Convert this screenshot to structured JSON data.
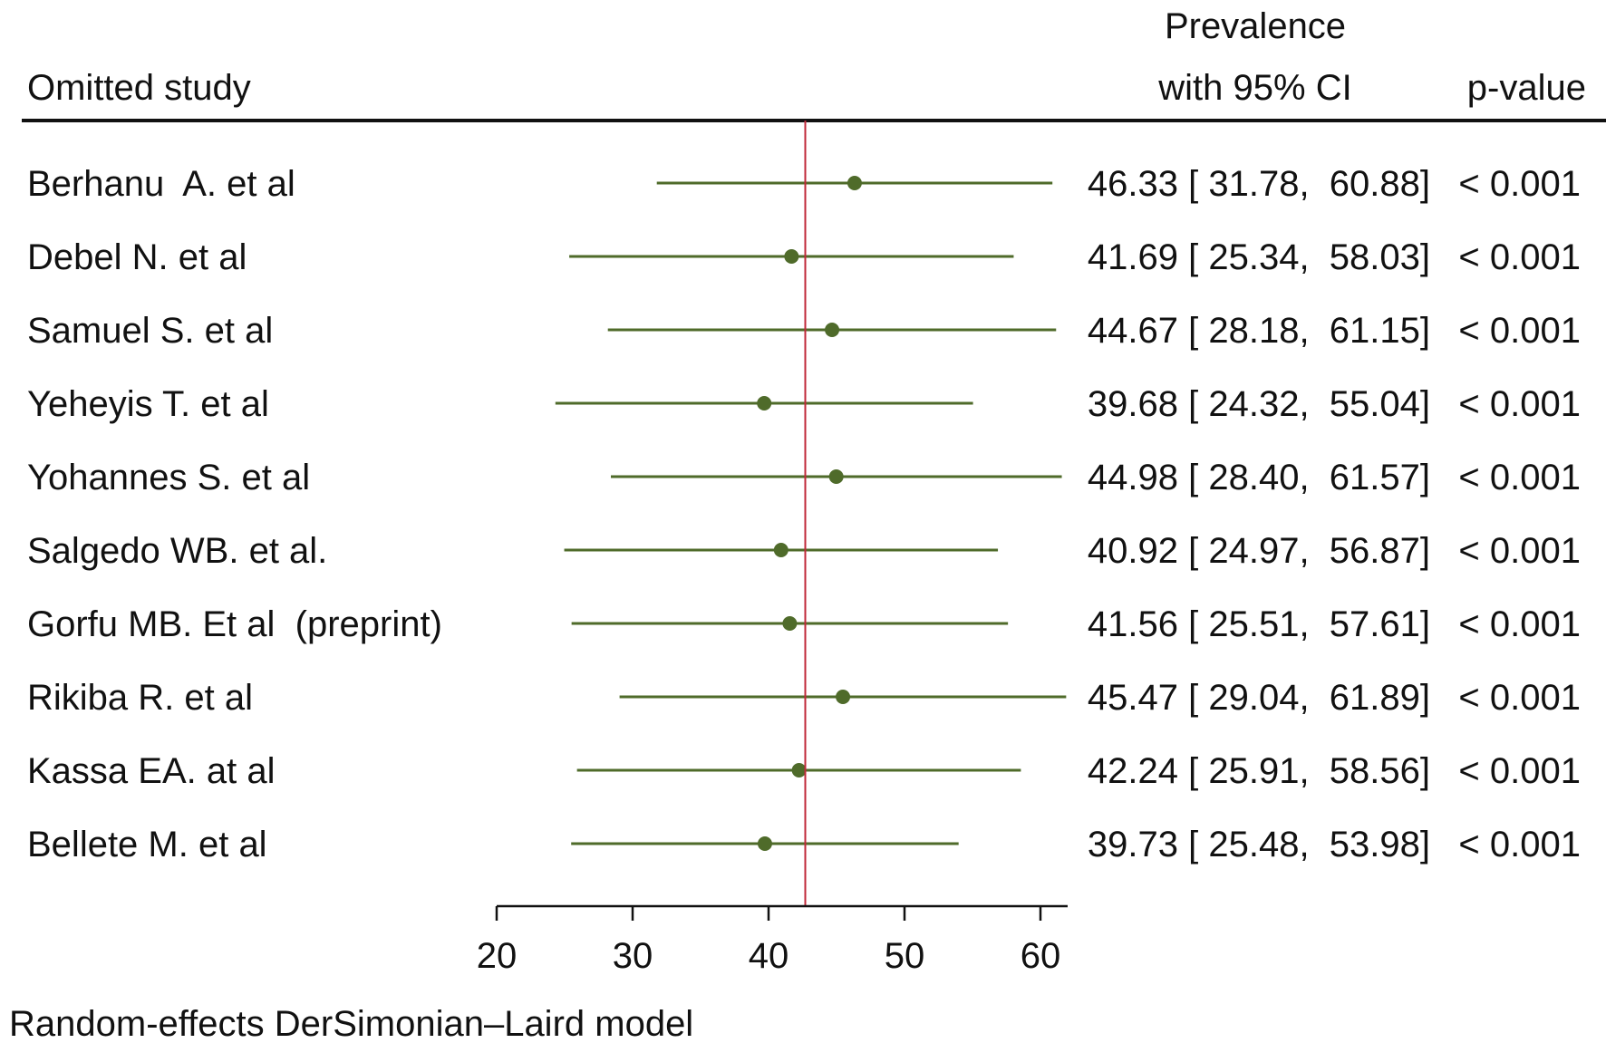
{
  "chart_data": {
    "type": "forest",
    "title": "",
    "header": {
      "study_col": "Omitted study",
      "estimate_col_line1": "Prevalence",
      "estimate_col_line2": "with 95% CI",
      "pvalue_col": "p-value"
    },
    "studies": [
      {
        "name": "Berhanu  A. et al",
        "estimate": 46.33,
        "lower": 31.78,
        "upper": 60.88,
        "ci_text": "46.33 [ 31.78,  60.88]",
        "p_text": "< 0.001"
      },
      {
        "name": "Debel N. et al",
        "estimate": 41.69,
        "lower": 25.34,
        "upper": 58.03,
        "ci_text": "41.69 [ 25.34,  58.03]",
        "p_text": "< 0.001"
      },
      {
        "name": "Samuel S. et al",
        "estimate": 44.67,
        "lower": 28.18,
        "upper": 61.15,
        "ci_text": "44.67 [ 28.18,  61.15]",
        "p_text": "< 0.001"
      },
      {
        "name": "Yeheyis T. et al",
        "estimate": 39.68,
        "lower": 24.32,
        "upper": 55.04,
        "ci_text": "39.68 [ 24.32,  55.04]",
        "p_text": "< 0.001"
      },
      {
        "name": "Yohannes S. et al",
        "estimate": 44.98,
        "lower": 28.4,
        "upper": 61.57,
        "ci_text": "44.98 [ 28.40,  61.57]",
        "p_text": "< 0.001"
      },
      {
        "name": "Salgedo WB. et al.",
        "estimate": 40.92,
        "lower": 24.97,
        "upper": 56.87,
        "ci_text": "40.92 [ 24.97,  56.87]",
        "p_text": "< 0.001"
      },
      {
        "name": "Gorfu MB. Et al  (preprint)",
        "estimate": 41.56,
        "lower": 25.51,
        "upper": 57.61,
        "ci_text": "41.56 [ 25.51,  57.61]",
        "p_text": "< 0.001"
      },
      {
        "name": "Rikiba R. et al",
        "estimate": 45.47,
        "lower": 29.04,
        "upper": 61.89,
        "ci_text": "45.47 [ 29.04,  61.89]",
        "p_text": "< 0.001"
      },
      {
        "name": "Kassa EA. at al",
        "estimate": 42.24,
        "lower": 25.91,
        "upper": 58.56,
        "ci_text": "42.24 [ 25.91,  58.56]",
        "p_text": "< 0.001"
      },
      {
        "name": "Bellete M. et al",
        "estimate": 39.73,
        "lower": 25.48,
        "upper": 53.98,
        "ci_text": "39.73 [ 25.48,  53.98]",
        "p_text": "< 0.001"
      }
    ],
    "overall_estimate": 42.7,
    "xlim": [
      20,
      62
    ],
    "xticks": [
      20,
      30,
      40,
      50,
      60
    ],
    "xtick_labels": [
      "20",
      "30",
      "40",
      "50",
      "60"
    ],
    "footnote": "Random-effects DerSimonian–Laird model",
    "colors": {
      "marker": "#4f6b2a",
      "reference_line": "#c0283a",
      "text": "#111111"
    }
  }
}
